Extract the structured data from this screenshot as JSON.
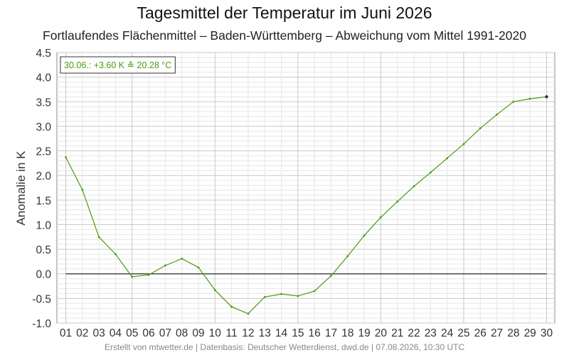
{
  "chart_data": {
    "type": "line",
    "title": "Tagesmittel der Temperatur im Juni 2026",
    "subtitle": "Fortlaufendes Flächenmittel – Baden-Württemberg – Abweichung vom Mittel 1991-2020",
    "ylabel": "Anomalie in K",
    "xlabel": "",
    "x": [
      "01",
      "02",
      "03",
      "04",
      "05",
      "06",
      "07",
      "08",
      "09",
      "10",
      "11",
      "12",
      "13",
      "14",
      "15",
      "16",
      "17",
      "18",
      "19",
      "20",
      "21",
      "22",
      "23",
      "24",
      "25",
      "26",
      "27",
      "28",
      "29",
      "30"
    ],
    "series": [
      {
        "color": "#4a9a0e",
        "values": [
          2.37,
          1.71,
          0.75,
          0.4,
          -0.06,
          -0.02,
          0.17,
          0.31,
          0.13,
          -0.33,
          -0.67,
          -0.81,
          -0.47,
          -0.41,
          -0.45,
          -0.35,
          -0.04,
          0.36,
          0.78,
          1.15,
          1.47,
          1.78,
          2.06,
          2.35,
          2.64,
          2.96,
          3.24,
          3.5,
          3.56,
          3.6
        ]
      }
    ],
    "ylim": [
      -1.0,
      4.5
    ],
    "yticks": [
      "-1.0",
      "-0.5",
      "0.0",
      "0.5",
      "1.0",
      "1.5",
      "2.0",
      "2.5",
      "3.0",
      "3.5",
      "4.0",
      "4.5"
    ],
    "grid": true,
    "reference_line": 0.0,
    "annotation": "30.06.: +3.60 K ≙ 20.28 °C"
  },
  "footer": "Erstellt von mtwetter.de | Datenbasis: Deutscher Wetterdienst, dwd.de | 07.08.2026, 10:30 UTC",
  "colors": {
    "series": "#4a9a0e",
    "grid_major": "#c8c8c8",
    "grid_minor": "#e6e6e6",
    "zero_line": "#000000"
  }
}
